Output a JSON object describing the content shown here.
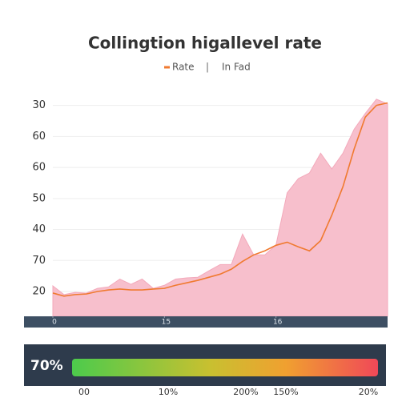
{
  "chart_data": {
    "type": "line",
    "title": "Collingtion higallevel rate",
    "legend_separator": "|",
    "x": [
      0,
      1,
      2,
      3,
      4,
      5,
      6,
      7,
      8,
      9,
      10,
      11,
      12,
      13,
      14,
      15,
      16,
      17,
      18,
      19,
      20,
      21,
      22,
      23,
      24,
      25,
      26,
      27,
      28,
      29,
      30
    ],
    "series": [
      {
        "name": "Rate",
        "color": "#f07a30",
        "type": "line",
        "values": [
          19.5,
          18.5,
          19,
          19.2,
          20,
          20.5,
          20.8,
          20.5,
          20.5,
          20.8,
          21,
          22,
          22.8,
          23.6,
          24.6,
          25.6,
          27.2,
          29.7,
          31.8,
          33.1,
          34.9,
          35.9,
          34.4,
          33.1,
          36.4,
          44.6,
          53.8,
          65.9,
          76.2,
          80,
          80.8
        ]
      },
      {
        "name": "In Fad",
        "color": "#f7bfcc",
        "type": "area",
        "values": [
          21.8,
          19,
          19.7,
          19.5,
          21,
          21.5,
          24,
          22.3,
          24,
          21,
          22,
          24,
          24.4,
          24.6,
          26.7,
          28.7,
          28.7,
          38.5,
          31.8,
          31.8,
          35,
          51.8,
          56.4,
          58.2,
          64.6,
          59.5,
          64.6,
          72.3,
          77.4,
          82,
          80.5
        ]
      }
    ],
    "xlim": [
      0,
      30
    ],
    "xticks": [
      0,
      {
        "value": 10,
        "label": "15"
      },
      {
        "value": 20,
        "label": "16"
      }
    ],
    "ylim": [
      12,
      83
    ],
    "yticks": [
      {
        "value": 80,
        "label": "30"
      },
      {
        "value": 70,
        "label": "60"
      },
      60,
      50,
      40,
      {
        "value": 30,
        "label": "70"
      },
      20
    ],
    "grid": true
  },
  "gauge": {
    "label": "70%",
    "scale_labels": [
      "00",
      "10%",
      "200%",
      "150%",
      "20%"
    ]
  }
}
